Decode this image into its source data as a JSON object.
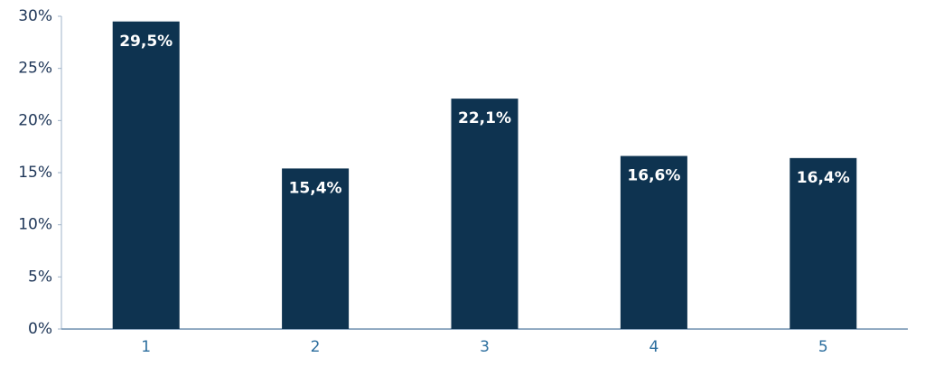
{
  "chart_data": {
    "type": "bar",
    "categories": [
      "1",
      "2",
      "3",
      "4",
      "5"
    ],
    "values": [
      29.5,
      15.4,
      22.1,
      16.6,
      16.4
    ],
    "value_labels": [
      "29,5%",
      "15,4%",
      "22,1%",
      "16,6%",
      "16,4%"
    ],
    "color": "#0e3350",
    "ylim": [
      0,
      30
    ],
    "yticks": [
      {
        "value": 0,
        "label": "0%"
      },
      {
        "value": 5,
        "label": "5%"
      },
      {
        "value": 10,
        "label": "10%"
      },
      {
        "value": 15,
        "label": "15%"
      },
      {
        "value": 20,
        "label": "20%"
      },
      {
        "value": 25,
        "label": "25%"
      },
      {
        "value": 30,
        "label": "30%"
      }
    ]
  }
}
